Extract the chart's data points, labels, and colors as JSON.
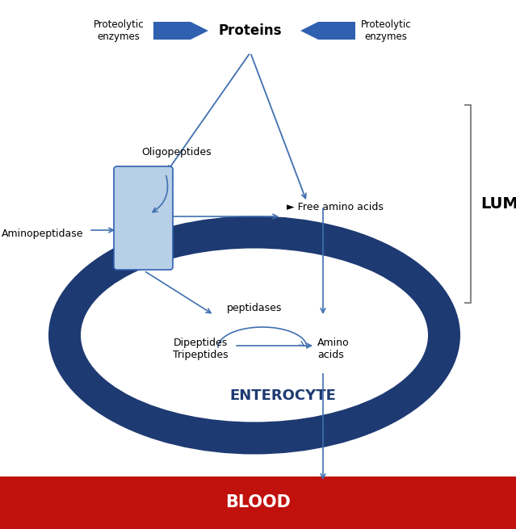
{
  "bg_color": "#ffffff",
  "dark_blue": "#1e3a72",
  "medium_blue": "#3060b0",
  "light_blue": "#b8cfe8",
  "arrow_blue": "#4070b0",
  "red": "#c0110c",
  "lumen_text": "LUMEN",
  "enterocyte_text": "ENTEROCYTE",
  "blood_text": "BLOOD",
  "proteins_text": "Proteins",
  "proteolytic_left": "Proteolytic\nenzymes",
  "proteolytic_right": "Proteolytic\nenzymes",
  "oligopeptides_text": "Oligopeptides",
  "free_amino_acids_text": "► Free amino acids",
  "aminopeptidase_text": "Aminopeptidase",
  "dipeptides_text": "Dipeptides\nTripeptides",
  "amino_acids_text": "Amino\nacids",
  "peptidases_text": "peptidases",
  "fig_w": 6.39,
  "fig_h": 6.55,
  "dpi": 100
}
